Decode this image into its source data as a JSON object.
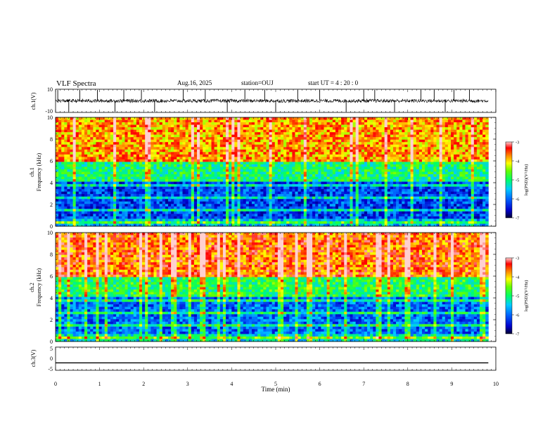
{
  "header": {
    "title": "VLF Spectra",
    "date": "Aug.16, 2025",
    "station": "station=OUJ",
    "start_time": "start  UT =   4 : 20 : 0"
  },
  "colors": {
    "colormap": [
      "#000033",
      "#0000cc",
      "#0066ff",
      "#00ccff",
      "#00ff99",
      "#33ff00",
      "#ccff00",
      "#ffcc00",
      "#ff6600",
      "#ff0000",
      "#ffb0b0"
    ],
    "waveform_line": "#000000"
  },
  "chart_data": [
    {
      "type": "line",
      "panel": "ch1-waveform",
      "ylabel": "ch.1(V)",
      "ylim": [
        -10,
        10
      ],
      "yticks": [
        "10",
        "-10"
      ],
      "x_range_min": [
        0,
        9.83
      ],
      "baseline": 0,
      "noise_amplitude": 1.5,
      "spikes_at_min": [
        0.05,
        0.3,
        0.55,
        0.95,
        1.35,
        1.55,
        1.95,
        2.25,
        2.9,
        3.4,
        3.9,
        4.3,
        4.75,
        5.0,
        5.5,
        6.0,
        6.6,
        7.0,
        7.25,
        7.7,
        8.3,
        8.6,
        8.85,
        9.05,
        9.4
      ]
    },
    {
      "type": "heatmap",
      "panel": "ch1-spectrogram",
      "ylabel": "Frequency (kHz)",
      "channel_label": "ch.1",
      "ylim": [
        0,
        10
      ],
      "yticks": [
        "0",
        "2",
        "4",
        "6",
        "8",
        "10"
      ],
      "x_range_min": [
        0,
        9.83
      ],
      "colorbar": {
        "label": "log(PSD)(V²/Hz)",
        "range": [
          -7,
          -3
        ],
        "ticks": [
          "-3",
          "-4",
          "-5",
          "-6",
          "-7"
        ]
      },
      "description_levels": {
        "below_4kHz": -6.2,
        "4_to_6kHz": -5.0,
        "above_6kHz": -3.8
      }
    },
    {
      "type": "heatmap",
      "panel": "ch2-spectrogram",
      "ylabel": "Frequency (kHz)",
      "channel_label": "ch.2",
      "ylim": [
        0,
        10
      ],
      "yticks": [
        "0",
        "2",
        "4",
        "6",
        "8",
        "10"
      ],
      "x_range_min": [
        0,
        9.83
      ],
      "colorbar": {
        "label": "log(PSD)(V²/Hz)",
        "range": [
          -7,
          -3
        ],
        "ticks": [
          "-3",
          "-4",
          "-5",
          "-6",
          "-7"
        ]
      },
      "description_levels": {
        "below_4kHz": -6.0,
        "4_to_6kHz": -4.9,
        "above_6kHz": -3.6
      }
    },
    {
      "type": "line",
      "panel": "ch3-waveform",
      "ylabel": "ch.3(V)",
      "ylim": [
        -5,
        5
      ],
      "yticks": [
        "5",
        "0",
        "-5"
      ],
      "x_range_min": [
        0,
        9.83
      ],
      "value": -1.8
    }
  ],
  "xaxis": {
    "label": "Time (min)",
    "range": [
      0,
      10
    ],
    "ticks": [
      "0",
      "1",
      "2",
      "3",
      "4",
      "5",
      "6",
      "7",
      "8",
      "9",
      "10"
    ]
  }
}
